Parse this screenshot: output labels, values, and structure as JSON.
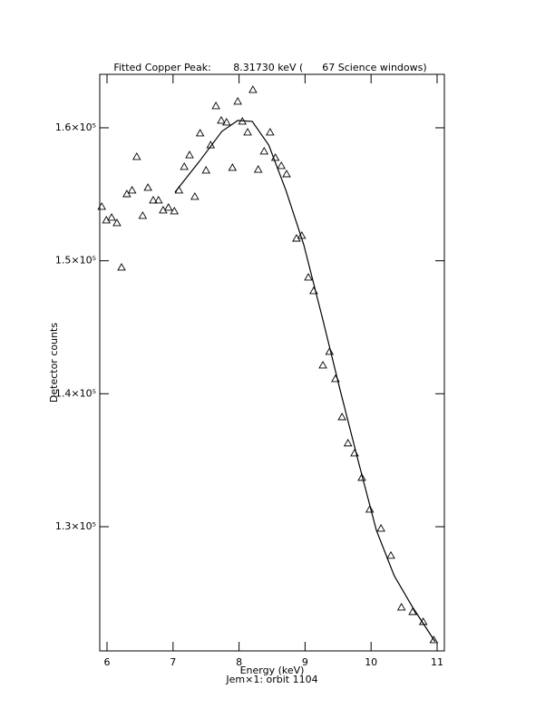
{
  "chart_data": {
    "type": "scatter",
    "title": "Fitted Copper Peak:       8.31730 keV (      67 Science windows)",
    "x_label": "Energy (keV)",
    "subtitle": "Jem×1: orbit 1104",
    "y_label": "Detector counts",
    "xlim": [
      5.89,
      11.11
    ],
    "ylim": [
      120660,
      164020
    ],
    "xticks": [
      6,
      7,
      8,
      9,
      10,
      11
    ],
    "yticks": [
      {
        "value": 130000,
        "label": "1.3×10⁵"
      },
      {
        "value": 140000,
        "label": "1.4×10⁵"
      },
      {
        "value": 150000,
        "label": "1.5×10⁵"
      },
      {
        "value": 160000,
        "label": "1.6×10⁵"
      }
    ],
    "color": "#000000",
    "series": [
      {
        "marker": "triangle",
        "x": [
          5.92,
          5.99,
          6.07,
          6.15,
          6.22,
          6.3,
          6.38,
          6.45,
          6.54,
          6.62,
          6.7,
          6.78,
          6.85,
          6.93,
          7.02,
          7.09,
          7.17,
          7.25,
          7.33,
          7.41,
          7.5,
          7.57,
          7.65,
          7.73,
          7.81,
          7.9,
          7.98,
          8.05,
          8.13,
          8.21,
          8.29,
          8.38,
          8.47,
          8.55,
          8.64,
          8.72,
          8.87,
          8.95,
          9.05,
          9.13,
          9.27,
          9.37,
          9.46,
          9.56,
          9.65,
          9.75,
          9.86,
          9.98,
          10.15,
          10.3,
          10.46,
          10.63,
          10.79,
          10.95
        ],
        "y": [
          154070,
          153050,
          153250,
          152840,
          149500,
          155020,
          155300,
          157820,
          153390,
          155500,
          154550,
          154550,
          153800,
          154000,
          153730,
          155300,
          157070,
          157950,
          154820,
          159590,
          156800,
          158700,
          161640,
          160550,
          160410,
          157000,
          161980,
          160480,
          159660,
          162860,
          156860,
          158230,
          159660,
          157750,
          157140,
          156520,
          151680,
          151890,
          148750,
          147730,
          142140,
          143160,
          141120,
          138250,
          136280,
          135530,
          133690,
          131300,
          129870,
          127830,
          123940,
          123600,
          122850,
          121480
        ]
      },
      {
        "marker": "line",
        "x": [
          7.03,
          7.4,
          7.74,
          7.98,
          8.2,
          8.45,
          8.71,
          8.98,
          9.26,
          9.53,
          9.81,
          10.08,
          10.35,
          10.63,
          10.97
        ],
        "y": [
          155160,
          157480,
          159730,
          160550,
          160480,
          158700,
          155300,
          151210,
          145750,
          140300,
          134850,
          129730,
          126320,
          123940,
          121350
        ]
      }
    ]
  }
}
